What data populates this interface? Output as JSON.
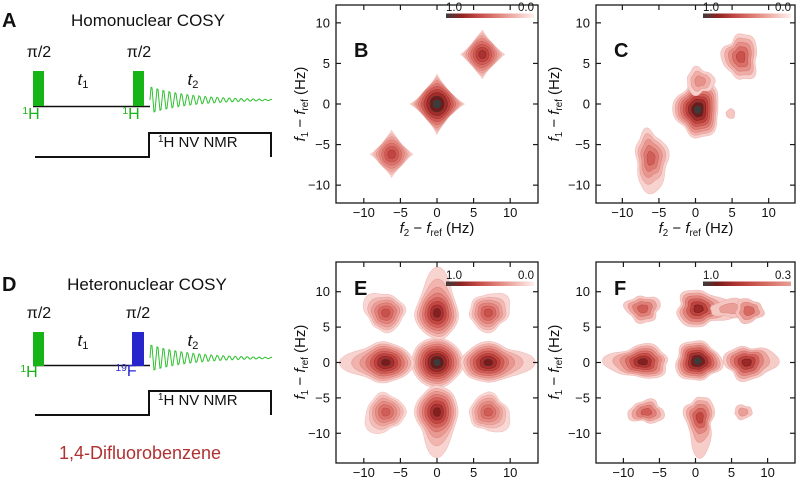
{
  "panels": {
    "A": {
      "letter": "A",
      "title": "Homonuclear COSY",
      "pulse1_label": "π/2",
      "pulse2_label": "π/2",
      "delay1": "*t*~1~",
      "delay2": "*t*~2~",
      "nucleus1": "^1^H",
      "nucleus2": "^1^H",
      "detector": "^1^H NV NMR",
      "pulse1_color": "#17b417",
      "pulse2_color": "#17b417",
      "nucleus1_color": "#17b417",
      "nucleus2_color": "#17b417",
      "fid_color": "#2ec22e",
      "line_color": "#111111"
    },
    "D": {
      "letter": "D",
      "title": "Heteronuclear COSY",
      "pulse1_label": "π/2",
      "pulse2_label": "π/2",
      "delay1": "*t*~1~",
      "delay2": "*t*~2~",
      "nucleus1": "^1^H",
      "nucleus2": "^19^F",
      "detector": "^1^H NV NMR",
      "pulse1_color": "#17b417",
      "pulse2_color": "#2626cc",
      "nucleus1_color": "#17b417",
      "nucleus2_color": "#2626cc",
      "fid_color": "#2ec22e",
      "line_color": "#111111",
      "molecule": "1,4-Difluorobenzene",
      "molecule_color": "#b03131"
    }
  },
  "chart_data": [
    {
      "id": "B",
      "type": "contour",
      "letter": "B",
      "xlabel": "*f*~2~ − *f*~ref~ (Hz)",
      "ylabel": "*f*~1~ − *f*~ref~ (Hz)",
      "xlim": [
        -13.8,
        13.8
      ],
      "ylim": [
        -12.2,
        12.2
      ],
      "xticks": [
        -10,
        -5,
        0,
        5,
        10
      ],
      "yticks": [
        -10,
        -5,
        0,
        5,
        10
      ],
      "colorbar": {
        "left": "1.0",
        "right": "0.0"
      },
      "legend_position": "top-right",
      "grid": false,
      "peaks": [
        {
          "x": 0,
          "y": 0,
          "amp": 1.0,
          "levels": 9,
          "rx": 3.7,
          "ry": 3.7,
          "pointy": 0.85,
          "jitter": 0.02,
          "seed": 1
        },
        {
          "x": 6.2,
          "y": 6.1,
          "amp": 0.75,
          "levels": 8,
          "rx": 3.0,
          "ry": 3.0,
          "pointy": 0.9,
          "jitter": 0.03,
          "seed": 2
        },
        {
          "x": -6.2,
          "y": -6.2,
          "amp": 0.65,
          "levels": 7,
          "rx": 2.9,
          "ry": 2.9,
          "pointy": 0.9,
          "jitter": 0.03,
          "seed": 3
        }
      ]
    },
    {
      "id": "C",
      "type": "contour",
      "letter": "C",
      "xlabel": "*f*~2~ − *f*~ref~ (Hz)",
      "ylabel": "*f*~1~ − *f*~ref~ (Hz)",
      "xlim": [
        -13.6,
        13.6
      ],
      "ylim": [
        -12.2,
        12.2
      ],
      "xticks": [
        -10,
        -5,
        0,
        5,
        10
      ],
      "yticks": [
        -10,
        -5,
        0,
        5,
        10
      ],
      "colorbar": {
        "left": "1.0",
        "right": "0.0"
      },
      "legend_position": "top-right",
      "grid": false,
      "peaks": [
        {
          "x": 0.3,
          "y": -0.7,
          "amp": 1.0,
          "levels": 9,
          "rx": 3.1,
          "ry": 3.4,
          "pointy": 1.9,
          "jitter": 0.16,
          "seed": 5
        },
        {
          "x": 0.6,
          "y": 2.8,
          "amp": 0.35,
          "levels": 3,
          "rx": 1.9,
          "ry": 1.6,
          "pointy": 1.9,
          "jitter": 0.22,
          "seed": 8
        },
        {
          "x": 6.2,
          "y": 5.8,
          "amp": 0.6,
          "levels": 5,
          "rx": 2.4,
          "ry": 2.8,
          "pointy": 1.9,
          "jitter": 0.2,
          "seed": 11
        },
        {
          "x": -6.1,
          "y": -6.7,
          "amp": 0.55,
          "levels": 5,
          "rx": 2.2,
          "ry": 3.4,
          "pointy": 1.9,
          "jitter": 0.2,
          "seed": 14,
          "tail": {
            "dir": -1.3,
            "len": 0.4
          }
        },
        {
          "x": 4.8,
          "y": -1.2,
          "amp": 0.15,
          "levels": 1,
          "rx": 0.6,
          "ry": 0.6,
          "pointy": 2.0,
          "jitter": 0.1,
          "seed": 17
        }
      ]
    },
    {
      "id": "E",
      "type": "contour",
      "letter": "E",
      "xlabel": null,
      "ylabel": "*f*~1~ − *f*~ref~ (Hz)",
      "xlim": [
        -13.8,
        13.8
      ],
      "ylim": [
        -14.2,
        14.2
      ],
      "xticks": [
        -10,
        -5,
        0,
        5,
        10
      ],
      "yticks": [
        -10,
        -5,
        0,
        5,
        10
      ],
      "colorbar": {
        "left": "1.0",
        "right": "0.0"
      },
      "legend_position": "top-right",
      "grid": false,
      "peaks": [
        {
          "x": 0,
          "y": 0,
          "amp": 1.0,
          "levels": 10,
          "rx": 3.6,
          "ry": 3.6,
          "pointy": 1.8,
          "jitter": 0.03,
          "seed": 1
        },
        {
          "x": -7,
          "y": 0,
          "amp": 0.88,
          "levels": 8,
          "rx": 3.8,
          "ry": 2.9,
          "pointy": 1.7,
          "jitter": 0.05,
          "seed": 2,
          "tail": {
            "dir": 3.1416,
            "len": 0.7
          }
        },
        {
          "x": 7,
          "y": 0,
          "amp": 0.88,
          "levels": 8,
          "rx": 3.8,
          "ry": 2.9,
          "pointy": 1.7,
          "jitter": 0.05,
          "seed": 3,
          "tail": {
            "dir": 0,
            "len": 0.7
          }
        },
        {
          "x": 0,
          "y": 7,
          "amp": 0.85,
          "levels": 8,
          "rx": 3.0,
          "ry": 3.8,
          "pointy": 1.7,
          "jitter": 0.05,
          "seed": 4,
          "tail": {
            "dir": 1.5708,
            "len": 0.7
          }
        },
        {
          "x": 0,
          "y": -7,
          "amp": 0.85,
          "levels": 8,
          "rx": 3.0,
          "ry": 3.8,
          "pointy": 1.7,
          "jitter": 0.05,
          "seed": 5,
          "tail": {
            "dir": -1.5708,
            "len": 0.7
          }
        },
        {
          "x": -7,
          "y": 7,
          "amp": 0.6,
          "levels": 6,
          "rx": 2.7,
          "ry": 2.7,
          "pointy": 1.6,
          "jitter": 0.1,
          "seed": 6,
          "tail": {
            "dir": 2.36,
            "len": 0.4
          }
        },
        {
          "x": 7,
          "y": 7,
          "amp": 0.6,
          "levels": 6,
          "rx": 2.7,
          "ry": 2.7,
          "pointy": 1.6,
          "jitter": 0.1,
          "seed": 7,
          "tail": {
            "dir": 0.79,
            "len": 0.4
          }
        },
        {
          "x": -7,
          "y": -7,
          "amp": 0.55,
          "levels": 6,
          "rx": 2.7,
          "ry": 2.7,
          "pointy": 1.6,
          "jitter": 0.1,
          "seed": 8,
          "tail": {
            "dir": -2.36,
            "len": 0.4
          }
        },
        {
          "x": 7,
          "y": -7,
          "amp": 0.55,
          "levels": 6,
          "rx": 2.7,
          "ry": 2.7,
          "pointy": 1.6,
          "jitter": 0.1,
          "seed": 9,
          "tail": {
            "dir": -0.79,
            "len": 0.4
          }
        }
      ]
    },
    {
      "id": "F",
      "type": "contour",
      "letter": "F",
      "xlabel": null,
      "ylabel": "*f*~1~ − *f*~ref~ (Hz)",
      "xlim": [
        -13.8,
        13.8
      ],
      "ylim": [
        -14.2,
        14.2
      ],
      "xticks": [
        -10,
        -5,
        0,
        5,
        10
      ],
      "yticks": [
        -10,
        -5,
        0,
        5,
        10
      ],
      "colorbar": {
        "left": "1.0",
        "right": "0.3"
      },
      "legend_position": "top-right",
      "grid": false,
      "peaks": [
        {
          "x": 0.3,
          "y": 0.2,
          "amp": 1.0,
          "levels": 8,
          "rx": 3.2,
          "ry": 2.8,
          "pointy": 1.9,
          "jitter": 0.15,
          "seed": 21
        },
        {
          "x": -7.3,
          "y": 0.1,
          "amp": 0.85,
          "levels": 7,
          "rx": 3.6,
          "ry": 2.4,
          "pointy": 1.9,
          "jitter": 0.15,
          "seed": 23,
          "tail": {
            "dir": 3.1416,
            "len": 0.5
          }
        },
        {
          "x": 7.1,
          "y": 0.0,
          "amp": 0.8,
          "levels": 6,
          "rx": 3.1,
          "ry": 2.4,
          "pointy": 1.9,
          "jitter": 0.18,
          "seed": 25,
          "tail": {
            "dir": 0,
            "len": 0.5
          }
        },
        {
          "x": 0.4,
          "y": 7.6,
          "amp": 0.8,
          "levels": 6,
          "rx": 3.1,
          "ry": 2.6,
          "pointy": 1.9,
          "jitter": 0.18,
          "seed": 27,
          "tail": {
            "dir": 0,
            "len": 0.7
          }
        },
        {
          "x": 4.8,
          "y": 7.6,
          "amp": 0.3,
          "levels": 2,
          "rx": 2.6,
          "ry": 1.3,
          "pointy": 2.0,
          "jitter": 0.2,
          "seed": 29
        },
        {
          "x": -7.3,
          "y": 7.6,
          "amp": 0.55,
          "levels": 4,
          "rx": 2.4,
          "ry": 1.9,
          "pointy": 1.9,
          "jitter": 0.2,
          "seed": 31
        },
        {
          "x": 7.4,
          "y": 7.3,
          "amp": 0.5,
          "levels": 3,
          "rx": 1.9,
          "ry": 1.7,
          "pointy": 1.9,
          "jitter": 0.2,
          "seed": 33
        },
        {
          "x": -6.8,
          "y": -7.0,
          "amp": 0.55,
          "levels": 4,
          "rx": 2.5,
          "ry": 1.6,
          "pointy": 1.9,
          "jitter": 0.22,
          "seed": 35
        },
        {
          "x": 0.6,
          "y": -7.8,
          "amp": 0.65,
          "levels": 5,
          "rx": 2.0,
          "ry": 3.1,
          "pointy": 1.9,
          "jitter": 0.2,
          "seed": 37,
          "tail": {
            "dir": -1.5708,
            "len": 0.8
          }
        },
        {
          "x": 6.6,
          "y": -7.0,
          "amp": 0.3,
          "levels": 2,
          "rx": 1.2,
          "ry": 1.0,
          "pointy": 2.0,
          "jitter": 0.15,
          "seed": 39
        }
      ]
    }
  ]
}
